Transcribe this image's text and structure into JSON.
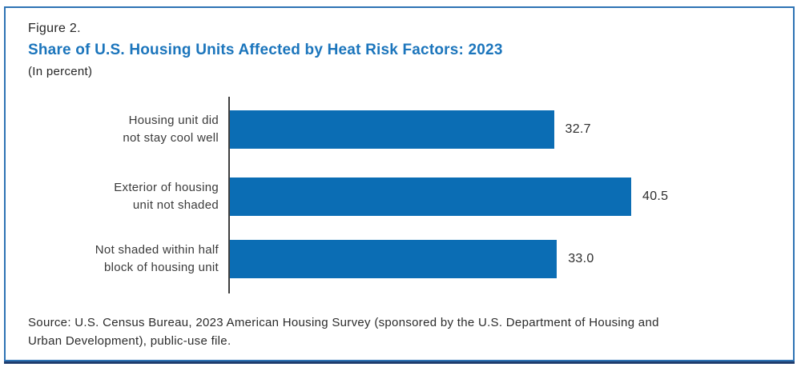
{
  "figure": {
    "label": "Figure 2.",
    "title": "Share of U.S. Housing Units Affected by Heat Risk Factors: 2023",
    "subtitle": "(In percent)",
    "source": "Source: U.S. Census Bureau, 2023 American Housing Survey (sponsored by the U.S. Department of Housing and Urban Development), public-use file."
  },
  "colors": {
    "title_blue": "#1b75bc",
    "bar_blue": "#0b6db4",
    "border_blue": "#2e73b4",
    "border_dark_bottom": "#1e3c6d",
    "axis_gray": "#3f3f3f"
  },
  "chart_data": {
    "type": "bar",
    "orientation": "horizontal",
    "title": "Share of U.S. Housing Units Affected by Heat Risk Factors: 2023",
    "subtitle": "(In percent)",
    "categories": [
      "Housing unit did not stay cool well",
      "Exterior of housing unit not shaded",
      "Not shaded within half block of housing unit"
    ],
    "category_lines": [
      [
        "Housing unit did",
        "not stay cool well"
      ],
      [
        "Exterior of housing",
        "unit not shaded"
      ],
      [
        "Not shaded within half",
        "block of housing unit"
      ]
    ],
    "values": [
      32.7,
      40.5,
      33.0
    ],
    "value_labels": [
      "32.7",
      "40.5",
      "33.0"
    ],
    "xlabel": "",
    "ylabel": "",
    "xlim": [
      0,
      56.5
    ],
    "grid": false,
    "legend": false,
    "data_labels_position": "right-of-bar"
  }
}
